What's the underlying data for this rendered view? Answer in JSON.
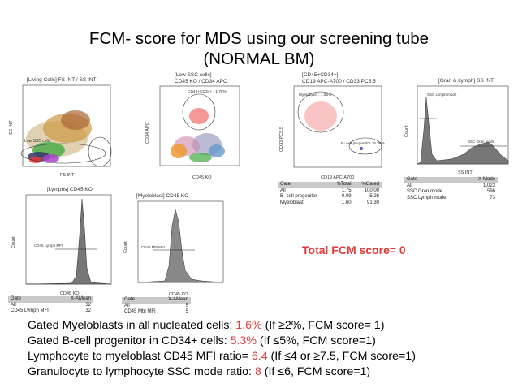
{
  "title_line1": "FCM- score for MDS using our screening tube",
  "title_line2": "(NORMAL BM)",
  "panels": {
    "p1": {
      "title": "[Living Cells] FS INT / SS INT",
      "xlabel": "FS INT",
      "ylabel": "SS INT",
      "gate": "Low SSC cells",
      "yticks": [
        "1000",
        "800",
        "600",
        "400",
        "200",
        "0"
      ],
      "xticks": [
        "0",
        "200",
        "400",
        "600",
        "800",
        "1000"
      ]
    },
    "p2": {
      "title_line1": "[Low SSC cells]",
      "title_line2": "CD45 KO / CD34 APC",
      "xlabel": "CD45 KO",
      "ylabel": "CD34 APC",
      "gate": "CD45+CD34+ : 1.75%"
    },
    "p3": {
      "title_line1": "[CD45+CD34+]",
      "title_line2": "CD19 APC-A700 / CD33 PC5.5",
      "xlabel": "CD19 APC-A700",
      "ylabel": "CD33 PC5.5",
      "gate1": "Myeloblast : 1.60%",
      "gate2": "B- cell progenitor : 5.26%",
      "table": {
        "headers": [
          "Gate",
          "%Total",
          "%Gated"
        ],
        "rows": [
          [
            "All",
            "1.75",
            "100.00"
          ],
          [
            "B- cell progenitor",
            "0.09",
            "5.26"
          ],
          [
            "Myeloblast",
            "1.60",
            "91.30"
          ]
        ]
      }
    },
    "p4": {
      "title": "[Gran & Lymph] SS INT",
      "xlabel": "SS INT",
      "ylabel": "Count",
      "gate1": "SSC Lymph mode",
      "gate2": "SSC Gran mode",
      "table": {
        "headers": [
          "Gate",
          "X-Mode"
        ],
        "rows": [
          [
            "All",
            "1,023"
          ],
          [
            "SSC Gran mode",
            "596"
          ],
          [
            "SSC Lymph mode",
            "73"
          ]
        ]
      }
    },
    "p5": {
      "title": "[Lymphs] CD45 KO",
      "xlabel": "CD45 KO",
      "ylabel": "Count",
      "gate": "CD45 Lymph MFI",
      "table": {
        "headers": [
          "Gate",
          "X-AMean"
        ],
        "rows": [
          [
            "All",
            "32"
          ],
          [
            "CD45 Lymph MFI",
            "32"
          ]
        ]
      }
    },
    "p6": {
      "title": "[Myeloblast] CD45 KO",
      "xlabel": "CD45 KO",
      "ylabel": "Count",
      "gate": "CD45 Mbl MFI",
      "table": {
        "headers": [
          "Gate",
          "X-AMean"
        ],
        "rows": [
          [
            "All",
            "5"
          ],
          [
            "CD45 Mbl MFI",
            "5"
          ]
        ]
      }
    }
  },
  "total_score": "Total FCM score=  0",
  "criteria": [
    {
      "text": "Gated Myeloblasts in all nucleated cells: ",
      "value": "1.6%",
      "rule": " (If ≥2%, FCM score= 1)"
    },
    {
      "text": "Gated B-cell progenitor in CD34+ cells: ",
      "value": "5.3%",
      "rule": "  (If ≤5%, FCM score=1)"
    },
    {
      "text": "Lymphocyte to myeloblast CD45 MFI ratio= ",
      "value": "6.4",
      "rule": " (If ≤4 or ≥7.5, FCM score=1)"
    },
    {
      "text": "Granulocyte to lymphocyte SSC mode ratio:  ",
      "value": "8",
      "rule": " (If ≤6, FCM score=1)"
    }
  ],
  "colors": {
    "accent_red": "#e03a3a"
  }
}
